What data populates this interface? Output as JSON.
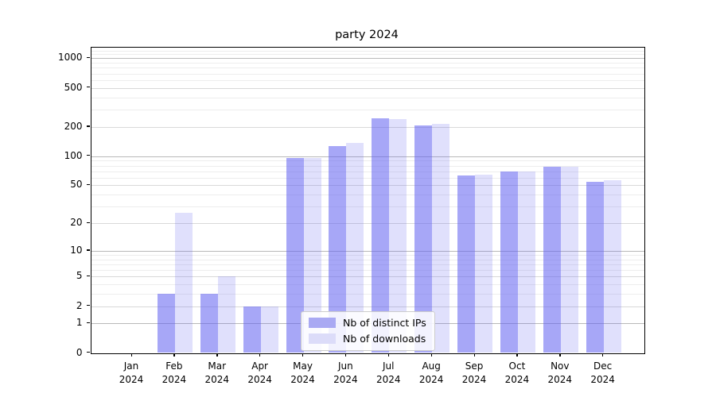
{
  "chart_data": {
    "type": "bar",
    "title": "party 2024",
    "ylabel": "",
    "xlabel": "",
    "scale": "log1p",
    "ylim": [
      0,
      1340
    ],
    "grid": "both",
    "legend_position": "lower-center",
    "year_label": "2024",
    "categories": [
      "Jan",
      "Feb",
      "Mar",
      "Apr",
      "May",
      "Jun",
      "Jul",
      "Aug",
      "Sep",
      "Oct",
      "Nov",
      "Dec"
    ],
    "yticks": [
      0,
      1,
      2,
      5,
      10,
      20,
      50,
      100,
      200,
      500,
      1000
    ],
    "minor_yticks": [
      3,
      4,
      6,
      7,
      8,
      9,
      30,
      40,
      60,
      70,
      80,
      90,
      300,
      400,
      600,
      700,
      800,
      900,
      1100,
      1200,
      1300
    ],
    "series": [
      {
        "name": "Nb of distinct IPs",
        "legend_color": "#a9a9f3",
        "fill": "rgba(98,98,240,0.56)",
        "values": [
          0,
          3,
          3,
          2,
          95,
          128,
          245,
          208,
          63,
          70,
          78,
          54
        ]
      },
      {
        "name": "Nb of downloads",
        "legend_color": "#dcdcf9",
        "fill": "rgba(98,98,240,0.20)",
        "values": [
          0,
          26,
          5,
          2,
          95,
          136,
          240,
          216,
          65,
          70,
          78,
          56
        ]
      }
    ]
  }
}
